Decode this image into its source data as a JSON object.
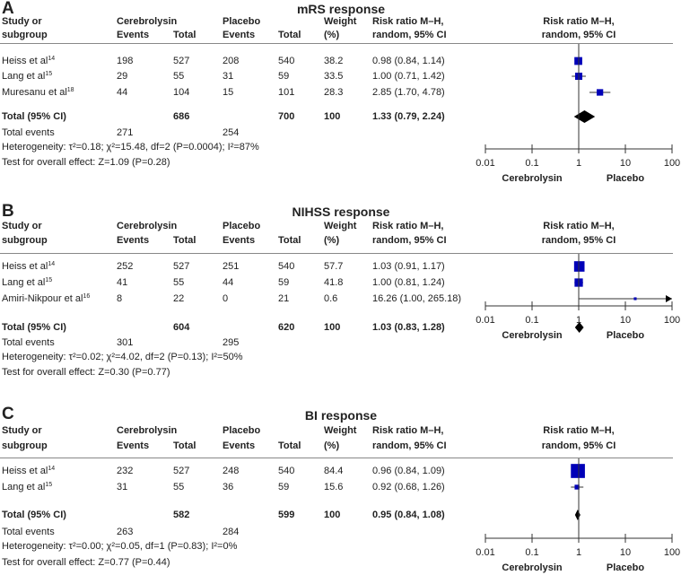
{
  "header": {
    "study_1": "Study or",
    "study_2": "subgroup",
    "cereb": "Cerebrolysin",
    "placebo": "Placebo",
    "events": "Events",
    "total": "Total",
    "weight_1": "Weight",
    "weight_2": "(%)",
    "rr_1": "Risk ratio M–H,",
    "rr_2": "random, 95% CI",
    "total_events_label": "Total events",
    "total_ci_label": "Total (95% CI)"
  },
  "axis": {
    "ticks": [
      "0.01",
      "0.1",
      "1",
      "10",
      "100"
    ],
    "tick_values": [
      0.01,
      0.1,
      1,
      10,
      100
    ],
    "left_label": "Cerebrolysin",
    "right_label": "Placebo"
  },
  "colors": {
    "square": "#0000b8",
    "diamond": "#000000"
  },
  "chart_data": [
    {
      "type": "forest",
      "letter": "A",
      "title": "mRS response",
      "xlim": [
        0.01,
        100
      ],
      "xscale": "log",
      "studies": [
        {
          "name": "Heiss et al",
          "ref": "14",
          "c_events": "198",
          "c_total": "527",
          "p_events": "208",
          "p_total": "540",
          "weight": "38.2",
          "ci_text": "0.98 (0.84, 1.14)",
          "rr": 0.98,
          "lo": 0.84,
          "hi": 1.14
        },
        {
          "name": "Lang et al",
          "ref": "15",
          "c_events": "29",
          "c_total": "55",
          "p_events": "31",
          "p_total": "59",
          "weight": "33.5",
          "ci_text": "1.00 (0.71, 1.42)",
          "rr": 1.0,
          "lo": 0.71,
          "hi": 1.42
        },
        {
          "name": "Muresanu et al",
          "ref": "18",
          "c_events": "44",
          "c_total": "104",
          "p_events": "15",
          "p_total": "101",
          "weight": "28.3",
          "ci_text": "2.85 (1.70, 4.78)",
          "rr": 2.85,
          "lo": 1.7,
          "hi": 4.78
        }
      ],
      "total": {
        "c_total": "686",
        "p_total": "700",
        "weight": "100",
        "ci_text": "1.33 (0.79, 2.24)",
        "rr": 1.33,
        "lo": 0.79,
        "hi": 2.24,
        "c_events": "271",
        "p_events": "254"
      },
      "heterogeneity": "Heterogeneity: τ²=0.18; χ²=15.48, df=2 (P=0.0004); I²=87%",
      "overall": "Test for overall effect: Z=1.09 (P=0.28)"
    },
    {
      "type": "forest",
      "letter": "B",
      "title": "NIHSS response",
      "xlim": [
        0.01,
        100
      ],
      "xscale": "log",
      "studies": [
        {
          "name": "Heiss et al",
          "ref": "14",
          "c_events": "252",
          "c_total": "527",
          "p_events": "251",
          "p_total": "540",
          "weight": "57.7",
          "ci_text": "1.03 (0.91, 1.17)",
          "rr": 1.03,
          "lo": 0.91,
          "hi": 1.17
        },
        {
          "name": "Lang et al",
          "ref": "15",
          "c_events": "41",
          "c_total": "55",
          "p_events": "44",
          "p_total": "59",
          "weight": "41.8",
          "ci_text": "1.00 (0.81, 1.24)",
          "rr": 1.0,
          "lo": 0.81,
          "hi": 1.24
        },
        {
          "name": "Amiri-Nikpour et al",
          "ref": "16",
          "c_events": "8",
          "c_total": "22",
          "p_events": "0",
          "p_total": "21",
          "weight": "0.6",
          "ci_text": "16.26 (1.00, 265.18)",
          "rr": 16.26,
          "lo": 1.0,
          "hi": 265.18
        }
      ],
      "total": {
        "c_total": "604",
        "p_total": "620",
        "weight": "100",
        "ci_text": "1.03 (0.83, 1.28)",
        "rr": 1.03,
        "lo": 0.83,
        "hi": 1.28,
        "c_events": "301",
        "p_events": "295"
      },
      "heterogeneity": "Heterogeneity: τ²=0.02; χ²=4.02, df=2 (P=0.13); I²=50%",
      "overall": "Test for overall effect: Z=0.30 (P=0.77)"
    },
    {
      "type": "forest",
      "letter": "C",
      "title": "BI response",
      "xlim": [
        0.01,
        100
      ],
      "xscale": "log",
      "studies": [
        {
          "name": "Heiss et al",
          "ref": "14",
          "c_events": "232",
          "c_total": "527",
          "p_events": "248",
          "p_total": "540",
          "weight": "84.4",
          "ci_text": "0.96 (0.84, 1.09)",
          "rr": 0.96,
          "lo": 0.84,
          "hi": 1.09
        },
        {
          "name": "Lang et al",
          "ref": "15",
          "c_events": "31",
          "c_total": "55",
          "p_events": "36",
          "p_total": "59",
          "weight": "15.6",
          "ci_text": "0.92 (0.68, 1.26)",
          "rr": 0.92,
          "lo": 0.68,
          "hi": 1.26
        }
      ],
      "total": {
        "c_total": "582",
        "p_total": "599",
        "weight": "100",
        "ci_text": "0.95 (0.84, 1.08)",
        "rr": 0.95,
        "lo": 0.84,
        "hi": 1.08,
        "c_events": "263",
        "p_events": "284"
      },
      "heterogeneity": "Heterogeneity: τ²=0.00; χ²=0.05, df=1 (P=0.83); I²=0%",
      "overall": "Test for overall effect: Z=0.77 (P=0.44)"
    }
  ]
}
